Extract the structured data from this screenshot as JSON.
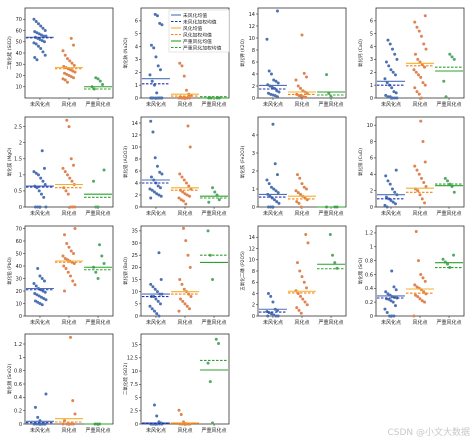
{
  "chart_data": [
    {
      "type": "scatter",
      "ylabel": "二氧化硅 (SiO2)",
      "ylim": [
        0,
        80
      ],
      "yticks": [
        10,
        20,
        30,
        40,
        50,
        60,
        70
      ],
      "categories": [
        "未风化点",
        "风化点",
        "严重风化点"
      ],
      "points": [
        [
          70,
          68,
          66,
          64,
          62,
          60,
          59,
          58,
          57,
          56,
          55,
          55,
          54,
          53,
          52,
          51,
          50,
          49,
          48,
          46,
          44,
          41,
          38,
          36,
          34
        ],
        [
          53,
          47,
          42,
          38,
          35,
          33,
          31,
          29,
          28,
          27,
          26,
          25,
          24,
          23,
          22,
          21,
          20,
          19,
          18,
          17,
          16,
          14
        ],
        [
          18,
          17,
          15,
          12,
          10,
          8
        ]
      ],
      "means": [
        54,
        27,
        10
      ],
      "wmeans": [
        53.5,
        26,
        8
      ]
    },
    {
      "type": "scatter",
      "ylabel": "氧化钠 (Na2O)",
      "ylim": [
        0,
        7
      ],
      "yticks": [
        0,
        1,
        2,
        3,
        4,
        5,
        6
      ],
      "categories": [
        "未风化点",
        "风化点",
        "严重风化点"
      ],
      "points": [
        [
          6.5,
          6.4,
          5.8,
          5.7,
          4.1,
          3.9,
          3.2,
          2.5,
          2.2,
          1.8,
          1.3,
          1.0,
          0.4,
          0,
          0,
          0,
          0,
          0,
          0,
          0,
          0,
          0
        ],
        [
          2.7,
          2.5,
          1.7,
          0.6,
          0.3,
          0.2,
          0.1,
          0,
          0,
          0,
          0,
          0,
          0,
          0,
          0
        ],
        [
          0,
          0,
          0,
          0
        ]
      ],
      "means": [
        1.5,
        0.3,
        0
      ],
      "wmeans": [
        1.1,
        0.15,
        0.1
      ]
    },
    {
      "type": "scatter",
      "ylabel": "氧化钾 (K2O)",
      "ylim": [
        0,
        15
      ],
      "yticks": [
        0,
        2,
        4,
        6,
        8,
        10,
        12,
        14
      ],
      "categories": [
        "未风化点",
        "风化点",
        "严重风化点"
      ],
      "points": [
        [
          14.5,
          9.8,
          4.5,
          4,
          3,
          2.8,
          2.5,
          2.2,
          2,
          1.8,
          1.6,
          1.2,
          1,
          0.8,
          0.6,
          0.5,
          0.4,
          0.2
        ],
        [
          10.5,
          4.1,
          3.5,
          3,
          2,
          1.6,
          1.2,
          1,
          0.8,
          0.6,
          0.4,
          0.3,
          0.2,
          0.1
        ],
        [
          3.9,
          0.8,
          0.2
        ]
      ],
      "means": [
        2.1,
        1.0,
        1.0
      ],
      "wmeans": [
        1.5,
        0.6,
        0.5
      ]
    },
    {
      "type": "scatter",
      "ylabel": "氧化钙 (CaO)",
      "ylim": [
        0,
        7
      ],
      "yticks": [
        0,
        1,
        2,
        3,
        4,
        5,
        6
      ],
      "categories": [
        "未风化点",
        "风化点",
        "严重风化点"
      ],
      "points": [
        [
          4.5,
          4.2,
          3.8,
          3.4,
          3,
          2.8,
          2.5,
          2.2,
          2,
          1.8,
          1.5,
          1.2,
          1,
          0.8,
          0.5,
          0.4,
          0.2,
          0.1,
          0.1,
          0,
          0,
          0
        ],
        [
          6.4,
          5.9,
          5.5,
          5.2,
          4.8,
          4.2,
          3.8,
          3.4,
          3,
          2.8,
          2.6,
          2.4,
          2.2,
          2,
          1.8,
          1.6,
          1.2,
          1,
          0.8,
          0.5,
          0.3,
          0
        ],
        [
          3.4,
          3.2,
          3,
          1.3,
          0.1
        ]
      ],
      "means": [
        1.3,
        2.7,
        2.1
      ],
      "wmeans": [
        1.0,
        2.5,
        2.4
      ]
    },
    {
      "type": "scatter",
      "ylabel": "氧化镁 (MgO)",
      "ylim": [
        0,
        2.8
      ],
      "yticks": [
        0,
        0.5,
        1,
        1.5,
        2,
        2.5
      ],
      "categories": [
        "未风化点",
        "风化点",
        "严重风化点"
      ],
      "points": [
        [
          1.75,
          1.2,
          1.1,
          1.05,
          1,
          0.9,
          0.8,
          0.7,
          0.65,
          0.6,
          0.5,
          0.4,
          0.3,
          0,
          0,
          0,
          0
        ],
        [
          2.7,
          2.5,
          1.5,
          1.3,
          1.2,
          1.1,
          1,
          0.9,
          0.8,
          0.7,
          0.6,
          0.5,
          0.4,
          0,
          0,
          0
        ],
        [
          1.15,
          0.8,
          0,
          0
        ]
      ],
      "means": [
        0.65,
        0.7,
        0.4
      ],
      "wmeans": [
        0.62,
        0.6,
        0.3
      ]
    },
    {
      "type": "scatter",
      "ylabel": "氧化铝 (Al2O3)",
      "ylim": [
        0,
        15
      ],
      "yticks": [
        0,
        2,
        4,
        6,
        8,
        10,
        12,
        14
      ],
      "categories": [
        "未风化点",
        "风化点",
        "严重风化点"
      ],
      "points": [
        [
          14.3,
          12.5,
          8.2,
          6.8,
          5.8,
          5.5,
          5,
          4.5,
          4,
          3.5,
          3.2,
          3,
          2.8,
          2.5,
          2.2,
          2,
          1.8,
          1.5
        ],
        [
          13.5,
          10,
          5.5,
          5,
          4.5,
          4,
          3.5,
          3,
          2.8,
          2.5,
          2.2,
          2,
          1.8,
          1.5,
          1.2,
          1,
          0.5
        ],
        [
          3.2,
          2.5,
          2,
          1.2,
          0.8
        ]
      ],
      "means": [
        4.5,
        3.2,
        1.8
      ],
      "wmeans": [
        4.0,
        2.8,
        1.5
      ]
    },
    {
      "type": "scatter",
      "ylabel": "氧化铁 (Fe2O3)",
      "ylim": [
        0,
        5
      ],
      "yticks": [
        0,
        1,
        2,
        3,
        4
      ],
      "categories": [
        "未风化点",
        "风化点",
        "严重风化点"
      ],
      "points": [
        [
          4.6,
          2.4,
          1.8,
          1.5,
          1.3,
          1.1,
          1,
          0.9,
          0.8,
          0.7,
          0.6,
          0.5,
          0.4,
          0.3,
          0.2,
          0,
          0,
          0
        ],
        [
          1.8,
          1.6,
          1.3,
          1.1,
          1,
          0.9,
          0.8,
          0.7,
          0.6,
          0.5,
          0.4,
          0.3,
          0.2,
          0
        ],
        [
          0,
          0,
          0
        ]
      ],
      "means": [
        0.7,
        0.6,
        0
      ],
      "wmeans": [
        0.55,
        0.45,
        0
      ]
    },
    {
      "type": "scatter",
      "ylabel": "氧化铜 (CuO)",
      "ylim": [
        0,
        11
      ],
      "yticks": [
        0,
        2,
        4,
        6,
        8,
        10
      ],
      "categories": [
        "未风化点",
        "风化点",
        "严重风化点"
      ],
      "points": [
        [
          4.5,
          3.8,
          3.2,
          2.8,
          2.2,
          1.8,
          1.5,
          1.2,
          1,
          0.8,
          0.6,
          0.4,
          0.2,
          0
        ],
        [
          10.5,
          8,
          5.5,
          5,
          4.5,
          4,
          3.5,
          3,
          2.5,
          2.2,
          2,
          1.5,
          1,
          0.5
        ],
        [
          3.5,
          3.2,
          2.8,
          2.5,
          1.8
        ]
      ],
      "means": [
        1.5,
        2.3,
        2.6
      ],
      "wmeans": [
        1.0,
        1.8,
        2.8
      ]
    },
    {
      "type": "scatter",
      "ylabel": "氧化铅 (PbO)",
      "ylim": [
        0,
        72
      ],
      "yticks": [
        0,
        10,
        20,
        30,
        40,
        50,
        60,
        70
      ],
      "categories": [
        "未风化点",
        "风化点",
        "严重风化点"
      ],
      "points": [
        [
          38,
          32,
          30,
          28,
          26,
          24,
          22,
          21,
          20,
          19,
          18,
          17,
          16,
          15,
          14,
          13,
          12,
          11,
          10,
          9
        ],
        [
          70,
          65,
          58,
          55,
          52,
          50,
          48,
          46,
          45,
          44,
          43,
          42,
          40,
          38,
          35,
          32,
          28,
          25,
          20
        ],
        [
          57,
          48,
          42,
          39,
          35,
          30
        ]
      ],
      "means": [
        22,
        44,
        39
      ],
      "wmeans": [
        21,
        43,
        37
      ]
    },
    {
      "type": "scatter",
      "ylabel": "氧化钡 (BaO)",
      "ylim": [
        0,
        37
      ],
      "yticks": [
        0,
        5,
        10,
        15,
        20,
        25,
        30,
        35
      ],
      "categories": [
        "未风化点",
        "风化点",
        "严重风化点"
      ],
      "points": [
        [
          26,
          15,
          13,
          12,
          11,
          10,
          9,
          9,
          8,
          8,
          7,
          6,
          5,
          4,
          3,
          2,
          1,
          0
        ],
        [
          36,
          31,
          25,
          20,
          15,
          13,
          11,
          10,
          9,
          8,
          7,
          6,
          5,
          4,
          3,
          2
        ],
        [
          35,
          25,
          15
        ]
      ],
      "means": [
        9,
        10,
        22
      ],
      "wmeans": [
        8,
        9,
        25
      ]
    },
    {
      "type": "scatter",
      "ylabel": "五氧化二磷 (P2O5)",
      "ylim": [
        0,
        16
      ],
      "yticks": [
        0,
        2,
        4,
        6,
        8,
        10,
        12,
        14
      ],
      "categories": [
        "未风化点",
        "风化点",
        "严重风化点"
      ],
      "points": [
        [
          4,
          3.5,
          2.5,
          1.2,
          1,
          0.8,
          0.6,
          0.4,
          0.2,
          0,
          0,
          0
        ],
        [
          14.5,
          13,
          9.5,
          8,
          7,
          6,
          5,
          4.5,
          4,
          3.5,
          3,
          2.5,
          2,
          1.5,
          1,
          0.5
        ],
        [
          14.5,
          10.8,
          9.5,
          8.5
        ]
      ],
      "means": [
        1.2,
        4.4,
        9.2
      ],
      "wmeans": [
        0.7,
        4.1,
        8.4
      ]
    },
    {
      "type": "scatter",
      "ylabel": "氧化锶 (SrO)",
      "ylim": [
        0,
        1.3
      ],
      "yticks": [
        0,
        0.2,
        0.4,
        0.6,
        0.8,
        1,
        1.2
      ],
      "categories": [
        "未风化点",
        "风化点",
        "严重风化点"
      ],
      "points": [
        [
          0.65,
          0.42,
          0.38,
          0.35,
          0.32,
          0.3,
          0.28,
          0.27,
          0.26,
          0.25,
          0.24,
          0.22,
          0.2,
          0.15,
          0.1,
          0.05,
          0,
          0,
          0
        ],
        [
          1.22,
          0.8,
          0.6,
          0.55,
          0.5,
          0.45,
          0.42,
          0.4,
          0.38,
          0.35,
          0.32,
          0.3,
          0.28,
          0.25,
          0.22,
          0.2,
          0
        ],
        [
          0.88,
          0.82,
          0.78,
          0.75,
          0.7
        ]
      ],
      "means": [
        0.29,
        0.39,
        0.77
      ],
      "wmeans": [
        0.26,
        0.33,
        0.7
      ]
    },
    {
      "type": "scatter",
      "ylabel": "氧化锡 (SnO2)",
      "ylim": [
        0,
        1.35
      ],
      "yticks": [
        0,
        0.2,
        0.4,
        0.6,
        0.8,
        1,
        1.2
      ],
      "categories": [
        "未风化点",
        "风化点",
        "严重风化点"
      ],
      "points": [
        [
          0.45,
          0.25,
          0.1,
          0.05,
          0,
          0,
          0,
          0,
          0,
          0,
          0,
          0
        ],
        [
          1.3,
          0.35,
          0.15,
          0.05,
          0,
          0,
          0,
          0,
          0
        ],
        [
          0,
          0,
          0
        ]
      ],
      "means": [
        0.04,
        0.08,
        0
      ],
      "wmeans": [
        0.02,
        0.03,
        0
      ]
    },
    {
      "type": "scatter",
      "ylabel": "二氧化硫 (SO2)",
      "ylim": [
        0,
        17
      ],
      "yticks": [
        0,
        2.5,
        5,
        7.5,
        10,
        12.5,
        15
      ],
      "categories": [
        "未风化点",
        "风化点",
        "严重风化点"
      ],
      "points": [
        [
          3.6,
          1.5,
          0.4,
          0.2,
          0,
          0,
          0,
          0,
          0,
          0,
          0,
          0
        ],
        [
          2.6,
          1.8,
          0.4,
          0.1,
          0,
          0,
          0,
          0,
          0,
          0,
          0
        ],
        [
          16,
          15.2,
          11.5,
          8,
          0.2
        ]
      ],
      "means": [
        0.2,
        0.2,
        10.2
      ],
      "wmeans": [
        0.1,
        0.1,
        12
      ]
    }
  ],
  "legend": [
    {
      "label": "未风化均值",
      "color": "#4c72b0",
      "dash": false
    },
    {
      "label": "未风化加权均值",
      "color": "#1f2fbf",
      "dash": true
    },
    {
      "label": "风化均值",
      "color": "#f2b12c",
      "dash": false
    },
    {
      "label": "风化加权均值",
      "color": "#ff7f0e",
      "dash": true
    },
    {
      "label": "严重风化均值",
      "color": "#2ca02c",
      "dash": false
    },
    {
      "label": "严重风化加权均值",
      "color": "#2ca02c",
      "dash": true
    }
  ],
  "colors": {
    "unweathered": "#4c72b0",
    "weathered": "#dd8452",
    "severe": "#55a868"
  },
  "watermark": "CSDN @小文大数据"
}
